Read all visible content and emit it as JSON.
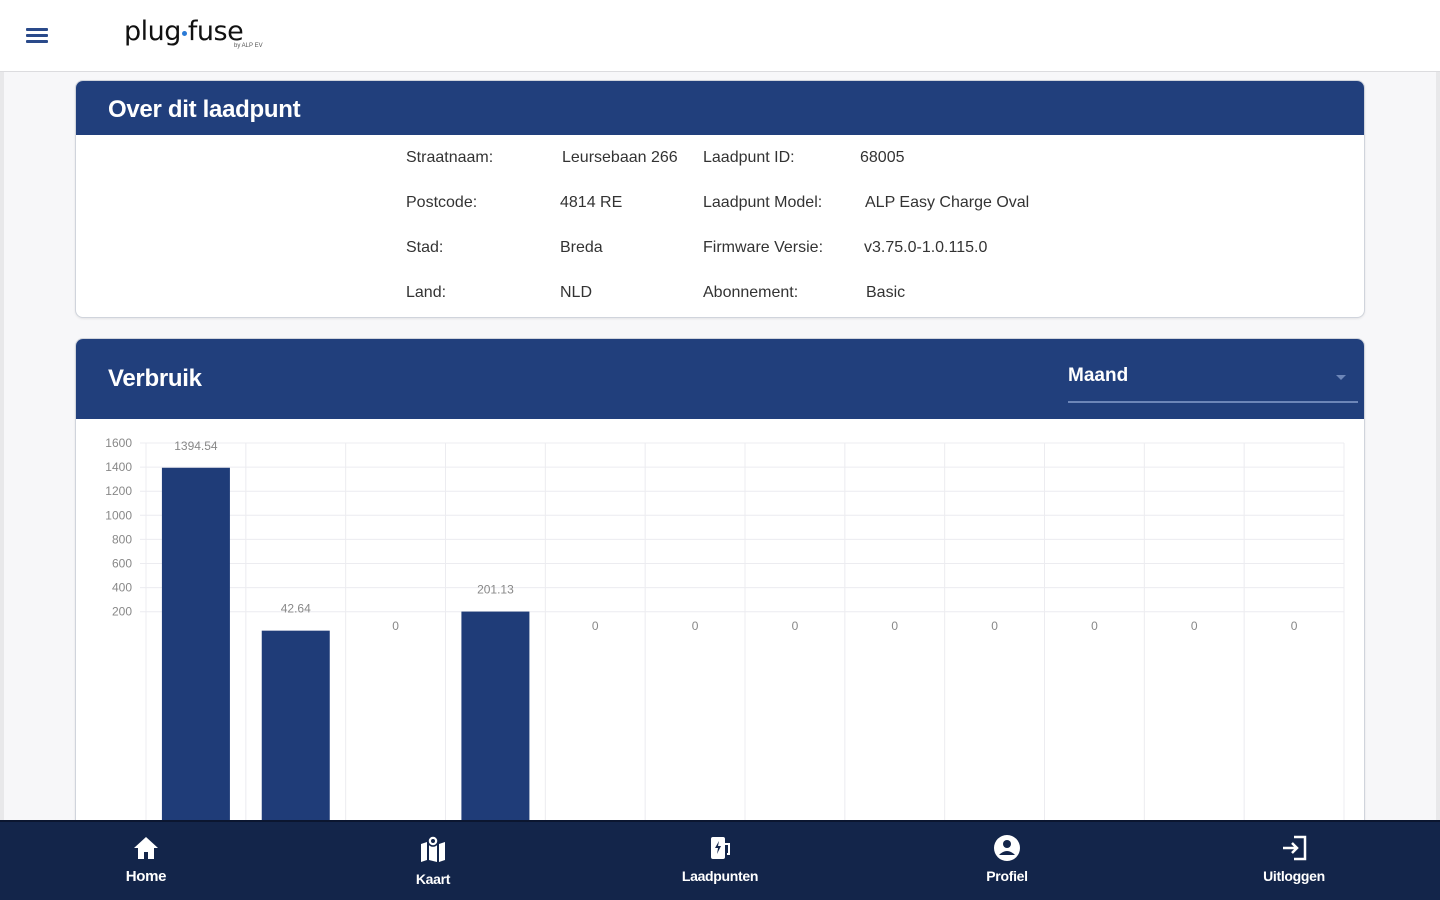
{
  "header": {
    "logo_left": "plug",
    "logo_right": "fuse",
    "logo_sub": "by ALP EV"
  },
  "info": {
    "title": "Over dit laadpunt",
    "rows": [
      {
        "label1": "Straatnaam:",
        "value1": "Leursebaan 266",
        "label2": "Laadpunt ID:",
        "value2": "68005"
      },
      {
        "label1": "Postcode:",
        "value1": "4814 RE",
        "label2": "Laadpunt Model:",
        "value2": "ALP Easy Charge Oval"
      },
      {
        "label1": "Stad:",
        "value1": "Breda",
        "label2": "Firmware Versie:",
        "value2": "v3.75.0-1.0.115.0"
      },
      {
        "label1": "Land:",
        "value1": "NLD",
        "label2": "Abonnement:",
        "value2": "Basic"
      }
    ]
  },
  "usage": {
    "title": "Verbruik",
    "period": "Maand"
  },
  "chart_data": {
    "type": "bar",
    "y_ticks": [
      200,
      400,
      600,
      800,
      1000,
      1200,
      1400,
      1600
    ],
    "ylim": [
      0,
      1600
    ],
    "values": [
      1394.54,
      42.64,
      0,
      201.13,
      0,
      0,
      0,
      0,
      0,
      0,
      0,
      0
    ],
    "labels": [
      "1394.54",
      "42.64",
      "0",
      "201.13",
      "0",
      "0",
      "0",
      "0",
      "0",
      "0",
      "0",
      "0"
    ],
    "bar_color": "#1f3c78",
    "grid": true
  },
  "nav": {
    "items": [
      {
        "label": "Home",
        "icon": "home-icon"
      },
      {
        "label": "Kaart",
        "icon": "map-icon"
      },
      {
        "label": "Laadpunten",
        "icon": "charger-icon"
      },
      {
        "label": "Profiel",
        "icon": "profile-icon"
      },
      {
        "label": "Uitloggen",
        "icon": "logout-icon"
      }
    ]
  },
  "colors": {
    "primary": "#213f7c",
    "nav_bg": "#13254a"
  }
}
